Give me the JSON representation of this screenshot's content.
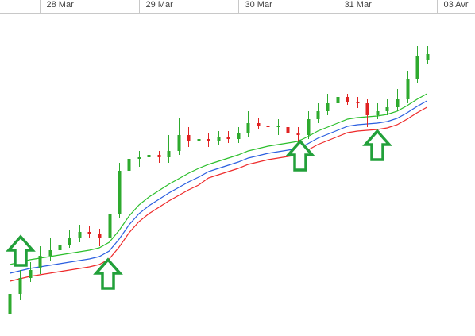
{
  "chart_data": {
    "type": "candlestick",
    "x": [
      0.7,
      0.8,
      0.9,
      1.0,
      1.1,
      1.2,
      1.3,
      1.4,
      1.5,
      1.6,
      1.7,
      1.8,
      1.9,
      2.0,
      2.1,
      2.2,
      2.3,
      2.4,
      2.5,
      2.6,
      2.7,
      2.8,
      2.9,
      3.0,
      3.1,
      3.2,
      3.3,
      3.4,
      3.5,
      3.6,
      3.7,
      3.8,
      3.9,
      4.0,
      4.1,
      4.2,
      4.3,
      4.4,
      4.5,
      4.6,
      4.7,
      4.8,
      4.9
    ],
    "open": [
      28,
      53,
      73,
      85,
      101,
      108,
      115,
      123,
      131,
      128,
      123,
      153,
      208,
      223,
      225,
      228,
      225,
      233,
      253,
      245,
      248,
      245,
      251,
      248,
      255,
      268,
      265,
      263,
      263,
      255,
      253,
      273,
      283,
      293,
      301,
      295,
      293,
      278,
      283,
      288,
      298,
      323,
      348
    ],
    "close": [
      53,
      73,
      83,
      101,
      108,
      115,
      123,
      131,
      128,
      123,
      153,
      208,
      223,
      225,
      228,
      225,
      233,
      253,
      245,
      248,
      245,
      251,
      248,
      255,
      268,
      265,
      263,
      265,
      255,
      253,
      273,
      283,
      293,
      301,
      295,
      293,
      278,
      283,
      288,
      298,
      323,
      353,
      355
    ],
    "high": [
      61,
      83,
      93,
      113,
      123,
      125,
      133,
      140,
      138,
      135,
      161,
      218,
      238,
      233,
      235,
      233,
      253,
      275,
      263,
      255,
      255,
      258,
      258,
      263,
      283,
      275,
      273,
      273,
      268,
      263,
      283,
      293,
      305,
      318,
      305,
      301,
      298,
      293,
      298,
      311,
      333,
      365,
      365
    ],
    "low": [
      3,
      45,
      68,
      78,
      95,
      103,
      111,
      118,
      123,
      113,
      118,
      148,
      201,
      213,
      218,
      218,
      218,
      228,
      238,
      238,
      238,
      241,
      243,
      243,
      251,
      261,
      255,
      253,
      248,
      243,
      248,
      268,
      278,
      288,
      291,
      287,
      263,
      273,
      278,
      283,
      293,
      318,
      343
    ],
    "up_color": "#2eaa2e",
    "down_color": "#e02222",
    "series": [
      {
        "color": "#2cbf2c",
        "values": [
          90,
          93,
          96,
          98,
          100,
          102,
          104,
          106,
          108,
          111,
          118,
          133,
          151,
          165,
          175,
          183,
          191,
          198,
          205,
          211,
          216,
          220,
          224,
          228,
          233,
          236,
          239,
          241,
          243,
          245,
          251,
          258,
          263,
          268,
          273,
          275,
          276,
          277,
          279,
          283,
          290,
          298,
          305
        ]
      },
      {
        "color": "#2b5fe0",
        "values": [
          79,
          82,
          85,
          87,
          89,
          91,
          93,
          95,
          97,
          100,
          107,
          122,
          140,
          154,
          164,
          172,
          180,
          187,
          194,
          200,
          207,
          211,
          215,
          219,
          224,
          227,
          230,
          232,
          234,
          236,
          242,
          249,
          254,
          259,
          264,
          266,
          267,
          268,
          270,
          274,
          281,
          289,
          296
        ]
      },
      {
        "color": "#ee2a2a",
        "values": [
          69,
          72,
          75,
          77,
          79,
          81,
          83,
          85,
          87,
          90,
          97,
          112,
          130,
          144,
          154,
          162,
          170,
          177,
          184,
          190,
          199,
          203,
          207,
          211,
          216,
          219,
          222,
          224,
          226,
          228,
          234,
          241,
          246,
          251,
          256,
          258,
          259,
          260,
          262,
          266,
          273,
          281,
          288
        ]
      }
    ],
    "xlim": [
      0.6,
      5.384
    ],
    "xticks": [
      {
        "value": 1,
        "label": "28 Mar"
      },
      {
        "value": 2,
        "label": "29 Mar"
      },
      {
        "value": 3,
        "label": "30 Mar"
      },
      {
        "value": 4,
        "label": "31 Mar"
      },
      {
        "value": 5,
        "label": "03 Avr"
      }
    ],
    "ylim": [
      0,
      406
    ]
  }
}
